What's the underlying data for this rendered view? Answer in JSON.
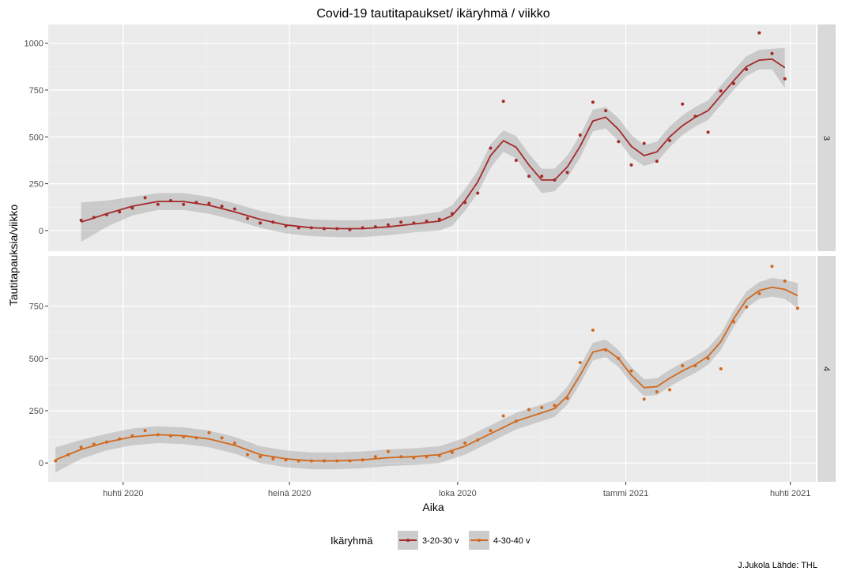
{
  "chart_data": {
    "type": "line",
    "title": "Covid-19 tautitapaukset/ ikäryhmä / viikko",
    "xlabel": "Aika",
    "ylabel": "Tautitapauksia/viikko",
    "caption": "J.Jukola  Lähde: THL",
    "x_ticks": [
      {
        "date": "2020-04-01",
        "label": "huhti 2020"
      },
      {
        "date": "2020-07-01",
        "label": "heinä 2020"
      },
      {
        "date": "2020-10-01",
        "label": "loka 2020"
      },
      {
        "date": "2021-01-01",
        "label": "tammi 2021"
      },
      {
        "date": "2021-04-01",
        "label": "huhti 2021"
      }
    ],
    "xlim": [
      "2020-02-20",
      "2021-04-15"
    ],
    "grid": true,
    "legend": {
      "title": "Ikäryhmä",
      "position": "bottom",
      "entries": [
        {
          "label": "3-20-30 v",
          "color": "#a52a2a"
        },
        {
          "label": "4-30-40 v",
          "color": "#d2691e"
        }
      ]
    },
    "panels": [
      {
        "strip": "3",
        "series_label": "3-20-30 v",
        "color": "#a52a2a",
        "ylim": [
          -110,
          1100
        ],
        "y_ticks": [
          0,
          250,
          500,
          750,
          1000
        ],
        "points": [
          [
            "2020-03-09",
            55
          ],
          [
            "2020-03-16",
            70
          ],
          [
            "2020-03-23",
            85
          ],
          [
            "2020-03-30",
            100
          ],
          [
            "2020-04-06",
            120
          ],
          [
            "2020-04-13",
            175
          ],
          [
            "2020-04-20",
            140
          ],
          [
            "2020-04-27",
            160
          ],
          [
            "2020-05-04",
            140
          ],
          [
            "2020-05-11",
            150
          ],
          [
            "2020-05-18",
            145
          ],
          [
            "2020-05-25",
            130
          ],
          [
            "2020-06-01",
            115
          ],
          [
            "2020-06-08",
            65
          ],
          [
            "2020-06-15",
            40
          ],
          [
            "2020-06-22",
            45
          ],
          [
            "2020-06-29",
            25
          ],
          [
            "2020-07-06",
            15
          ],
          [
            "2020-07-13",
            15
          ],
          [
            "2020-07-20",
            10
          ],
          [
            "2020-07-27",
            10
          ],
          [
            "2020-08-03",
            5
          ],
          [
            "2020-08-10",
            15
          ],
          [
            "2020-08-17",
            20
          ],
          [
            "2020-08-24",
            30
          ],
          [
            "2020-08-31",
            45
          ],
          [
            "2020-09-07",
            40
          ],
          [
            "2020-09-14",
            50
          ],
          [
            "2020-09-21",
            60
          ],
          [
            "2020-09-28",
            90
          ],
          [
            "2020-10-05",
            150
          ],
          [
            "2020-10-12",
            200
          ],
          [
            "2020-10-19",
            440
          ],
          [
            "2020-10-26",
            690
          ],
          [
            "2020-11-02",
            375
          ],
          [
            "2020-11-09",
            290
          ],
          [
            "2020-11-16",
            290
          ],
          [
            "2020-11-23",
            270
          ],
          [
            "2020-11-30",
            310
          ],
          [
            "2020-12-07",
            510
          ],
          [
            "2020-12-14",
            685
          ],
          [
            "2020-12-21",
            640
          ],
          [
            "2020-12-28",
            475
          ],
          [
            "2021-01-04",
            350
          ],
          [
            "2021-01-11",
            465
          ],
          [
            "2021-01-18",
            370
          ],
          [
            "2021-01-25",
            480
          ],
          [
            "2021-02-01",
            675
          ],
          [
            "2021-02-08",
            610
          ],
          [
            "2021-02-15",
            525
          ],
          [
            "2021-02-22",
            745
          ],
          [
            "2021-03-01",
            785
          ],
          [
            "2021-03-08",
            860
          ],
          [
            "2021-03-15",
            1055
          ],
          [
            "2021-03-22",
            945
          ],
          [
            "2021-03-29",
            810
          ]
        ],
        "smooth": [
          [
            "2020-03-09",
            45,
            -60,
            150
          ],
          [
            "2020-03-23",
            90,
            20,
            160
          ],
          [
            "2020-04-06",
            130,
            80,
            180
          ],
          [
            "2020-04-20",
            155,
            110,
            200
          ],
          [
            "2020-05-04",
            155,
            110,
            200
          ],
          [
            "2020-05-18",
            135,
            90,
            180
          ],
          [
            "2020-06-01",
            100,
            55,
            145
          ],
          [
            "2020-06-15",
            60,
            15,
            105
          ],
          [
            "2020-06-29",
            30,
            -15,
            75
          ],
          [
            "2020-07-13",
            15,
            -30,
            60
          ],
          [
            "2020-07-27",
            10,
            -35,
            55
          ],
          [
            "2020-08-10",
            10,
            -35,
            55
          ],
          [
            "2020-08-24",
            20,
            -25,
            65
          ],
          [
            "2020-09-07",
            35,
            -10,
            80
          ],
          [
            "2020-09-21",
            50,
            0,
            100
          ],
          [
            "2020-09-28",
            80,
            25,
            135
          ],
          [
            "2020-10-05",
            160,
            105,
            220
          ],
          [
            "2020-10-12",
            260,
            200,
            320
          ],
          [
            "2020-10-19",
            400,
            335,
            460
          ],
          [
            "2020-10-26",
            480,
            420,
            535
          ],
          [
            "2020-11-02",
            445,
            385,
            505
          ],
          [
            "2020-11-09",
            350,
            290,
            410
          ],
          [
            "2020-11-16",
            270,
            200,
            330
          ],
          [
            "2020-11-23",
            270,
            210,
            330
          ],
          [
            "2020-11-30",
            340,
            280,
            400
          ],
          [
            "2020-12-07",
            450,
            390,
            510
          ],
          [
            "2020-12-14",
            585,
            530,
            645
          ],
          [
            "2020-12-21",
            605,
            545,
            660
          ],
          [
            "2020-12-28",
            540,
            480,
            600
          ],
          [
            "2021-01-04",
            450,
            390,
            510
          ],
          [
            "2021-01-11",
            400,
            345,
            455
          ],
          [
            "2021-01-18",
            420,
            365,
            475
          ],
          [
            "2021-01-25",
            500,
            445,
            555
          ],
          [
            "2021-02-01",
            560,
            510,
            615
          ],
          [
            "2021-02-08",
            605,
            555,
            660
          ],
          [
            "2021-02-15",
            640,
            590,
            695
          ],
          [
            "2021-02-22",
            720,
            670,
            775
          ],
          [
            "2021-03-01",
            800,
            750,
            855
          ],
          [
            "2021-03-08",
            875,
            825,
            930
          ],
          [
            "2021-03-15",
            910,
            860,
            965
          ],
          [
            "2021-03-22",
            915,
            860,
            970
          ],
          [
            "2021-03-29",
            870,
            760,
            975
          ]
        ]
      },
      {
        "strip": "4",
        "series_label": "4-30-40 v",
        "color": "#d2691e",
        "ylim": [
          -90,
          990
        ],
        "y_ticks": [
          0,
          250,
          500,
          750
        ],
        "points": [
          [
            "2020-02-24",
            10
          ],
          [
            "2020-03-02",
            40
          ],
          [
            "2020-03-09",
            75
          ],
          [
            "2020-03-16",
            90
          ],
          [
            "2020-03-23",
            100
          ],
          [
            "2020-03-30",
            115
          ],
          [
            "2020-04-06",
            130
          ],
          [
            "2020-04-13",
            155
          ],
          [
            "2020-04-20",
            135
          ],
          [
            "2020-04-27",
            130
          ],
          [
            "2020-05-04",
            125
          ],
          [
            "2020-05-11",
            120
          ],
          [
            "2020-05-18",
            145
          ],
          [
            "2020-05-25",
            120
          ],
          [
            "2020-06-01",
            95
          ],
          [
            "2020-06-08",
            40
          ],
          [
            "2020-06-15",
            30
          ],
          [
            "2020-06-22",
            20
          ],
          [
            "2020-06-29",
            15
          ],
          [
            "2020-07-06",
            10
          ],
          [
            "2020-07-13",
            10
          ],
          [
            "2020-07-20",
            10
          ],
          [
            "2020-07-27",
            10
          ],
          [
            "2020-08-03",
            10
          ],
          [
            "2020-08-10",
            15
          ],
          [
            "2020-08-17",
            30
          ],
          [
            "2020-08-24",
            55
          ],
          [
            "2020-08-31",
            30
          ],
          [
            "2020-09-07",
            25
          ],
          [
            "2020-09-14",
            30
          ],
          [
            "2020-09-21",
            35
          ],
          [
            "2020-09-28",
            50
          ],
          [
            "2020-10-05",
            95
          ],
          [
            "2020-10-12",
            110
          ],
          [
            "2020-10-19",
            155
          ],
          [
            "2020-10-26",
            225
          ],
          [
            "2020-11-02",
            200
          ],
          [
            "2020-11-09",
            255
          ],
          [
            "2020-11-16",
            265
          ],
          [
            "2020-11-23",
            275
          ],
          [
            "2020-11-30",
            310
          ],
          [
            "2020-12-07",
            480
          ],
          [
            "2020-12-14",
            635
          ],
          [
            "2020-12-21",
            540
          ],
          [
            "2020-12-28",
            500
          ],
          [
            "2021-01-04",
            440
          ],
          [
            "2021-01-11",
            305
          ],
          [
            "2021-01-18",
            340
          ],
          [
            "2021-01-25",
            350
          ],
          [
            "2021-02-01",
            465
          ],
          [
            "2021-02-08",
            465
          ],
          [
            "2021-02-15",
            500
          ],
          [
            "2021-02-22",
            450
          ],
          [
            "2021-03-01",
            675
          ],
          [
            "2021-03-08",
            745
          ],
          [
            "2021-03-15",
            810
          ],
          [
            "2021-03-22",
            940
          ],
          [
            "2021-03-29",
            870
          ],
          [
            "2021-04-05",
            740
          ]
        ],
        "smooth": [
          [
            "2020-02-24",
            15,
            -45,
            75
          ],
          [
            "2020-03-09",
            65,
            20,
            110
          ],
          [
            "2020-03-23",
            100,
            60,
            140
          ],
          [
            "2020-04-06",
            125,
            85,
            165
          ],
          [
            "2020-04-20",
            135,
            95,
            175
          ],
          [
            "2020-05-04",
            130,
            90,
            170
          ],
          [
            "2020-05-18",
            115,
            75,
            155
          ],
          [
            "2020-06-01",
            85,
            45,
            125
          ],
          [
            "2020-06-15",
            40,
            0,
            80
          ],
          [
            "2020-06-29",
            20,
            -20,
            60
          ],
          [
            "2020-07-13",
            10,
            -30,
            50
          ],
          [
            "2020-07-27",
            10,
            -30,
            50
          ],
          [
            "2020-08-10",
            15,
            -25,
            55
          ],
          [
            "2020-08-24",
            25,
            -15,
            65
          ],
          [
            "2020-09-07",
            30,
            -10,
            70
          ],
          [
            "2020-09-21",
            40,
            0,
            80
          ],
          [
            "2020-10-05",
            80,
            40,
            120
          ],
          [
            "2020-10-19",
            140,
            100,
            180
          ],
          [
            "2020-11-02",
            200,
            160,
            240
          ],
          [
            "2020-11-16",
            240,
            200,
            280
          ],
          [
            "2020-11-23",
            260,
            220,
            300
          ],
          [
            "2020-11-30",
            320,
            280,
            365
          ],
          [
            "2020-12-07",
            420,
            380,
            465
          ],
          [
            "2020-12-14",
            530,
            490,
            575
          ],
          [
            "2020-12-21",
            545,
            505,
            590
          ],
          [
            "2020-12-28",
            500,
            460,
            540
          ],
          [
            "2021-01-04",
            420,
            380,
            460
          ],
          [
            "2021-01-11",
            360,
            320,
            400
          ],
          [
            "2021-01-18",
            365,
            325,
            405
          ],
          [
            "2021-01-25",
            405,
            365,
            445
          ],
          [
            "2021-02-01",
            440,
            400,
            480
          ],
          [
            "2021-02-08",
            470,
            430,
            510
          ],
          [
            "2021-02-15",
            510,
            470,
            550
          ],
          [
            "2021-02-22",
            580,
            540,
            620
          ],
          [
            "2021-03-01",
            690,
            650,
            730
          ],
          [
            "2021-03-08",
            780,
            740,
            820
          ],
          [
            "2021-03-15",
            825,
            785,
            865
          ],
          [
            "2021-03-22",
            840,
            795,
            885
          ],
          [
            "2021-03-29",
            830,
            785,
            875
          ],
          [
            "2021-04-05",
            800,
            740,
            860
          ]
        ]
      }
    ]
  }
}
